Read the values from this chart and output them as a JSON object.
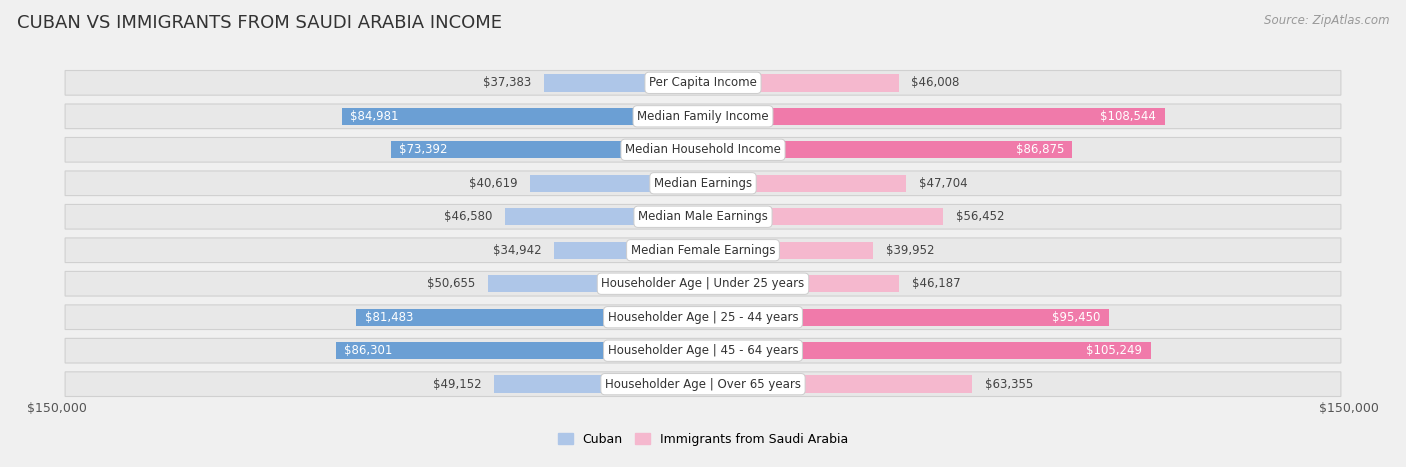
{
  "title": "CUBAN VS IMMIGRANTS FROM SAUDI ARABIA INCOME",
  "source": "Source: ZipAtlas.com",
  "categories": [
    "Per Capita Income",
    "Median Family Income",
    "Median Household Income",
    "Median Earnings",
    "Median Male Earnings",
    "Median Female Earnings",
    "Householder Age | Under 25 years",
    "Householder Age | 25 - 44 years",
    "Householder Age | 45 - 64 years",
    "Householder Age | Over 65 years"
  ],
  "cuban_values": [
    37383,
    84981,
    73392,
    40619,
    46580,
    34942,
    50655,
    81483,
    86301,
    49152
  ],
  "saudi_values": [
    46008,
    108544,
    86875,
    47704,
    56452,
    39952,
    46187,
    95450,
    105249,
    63355
  ],
  "cuban_labels": [
    "$37,383",
    "$84,981",
    "$73,392",
    "$40,619",
    "$46,580",
    "$34,942",
    "$50,655",
    "$81,483",
    "$86,301",
    "$49,152"
  ],
  "saudi_labels": [
    "$46,008",
    "$108,544",
    "$86,875",
    "$47,704",
    "$56,452",
    "$39,952",
    "$46,187",
    "$95,450",
    "$105,249",
    "$63,355"
  ],
  "cuban_color_light": "#aec6e8",
  "cuban_color_dark": "#6b9fd4",
  "saudi_color_light": "#f5b8ce",
  "saudi_color_dark": "#f07aaa",
  "cuban_dark_threshold": 60000,
  "saudi_dark_threshold": 85000,
  "max_value": 150000,
  "legend_cuban": "Cuban",
  "legend_saudi": "Immigrants from Saudi Arabia",
  "x_label_left": "$150,000",
  "x_label_right": "$150,000",
  "fig_bg": "#f0f0f0",
  "row_bg": "#e8e8e8",
  "row_border": "#d0d0d0",
  "title_fontsize": 13,
  "value_fontsize": 8.5,
  "category_fontsize": 8.5
}
